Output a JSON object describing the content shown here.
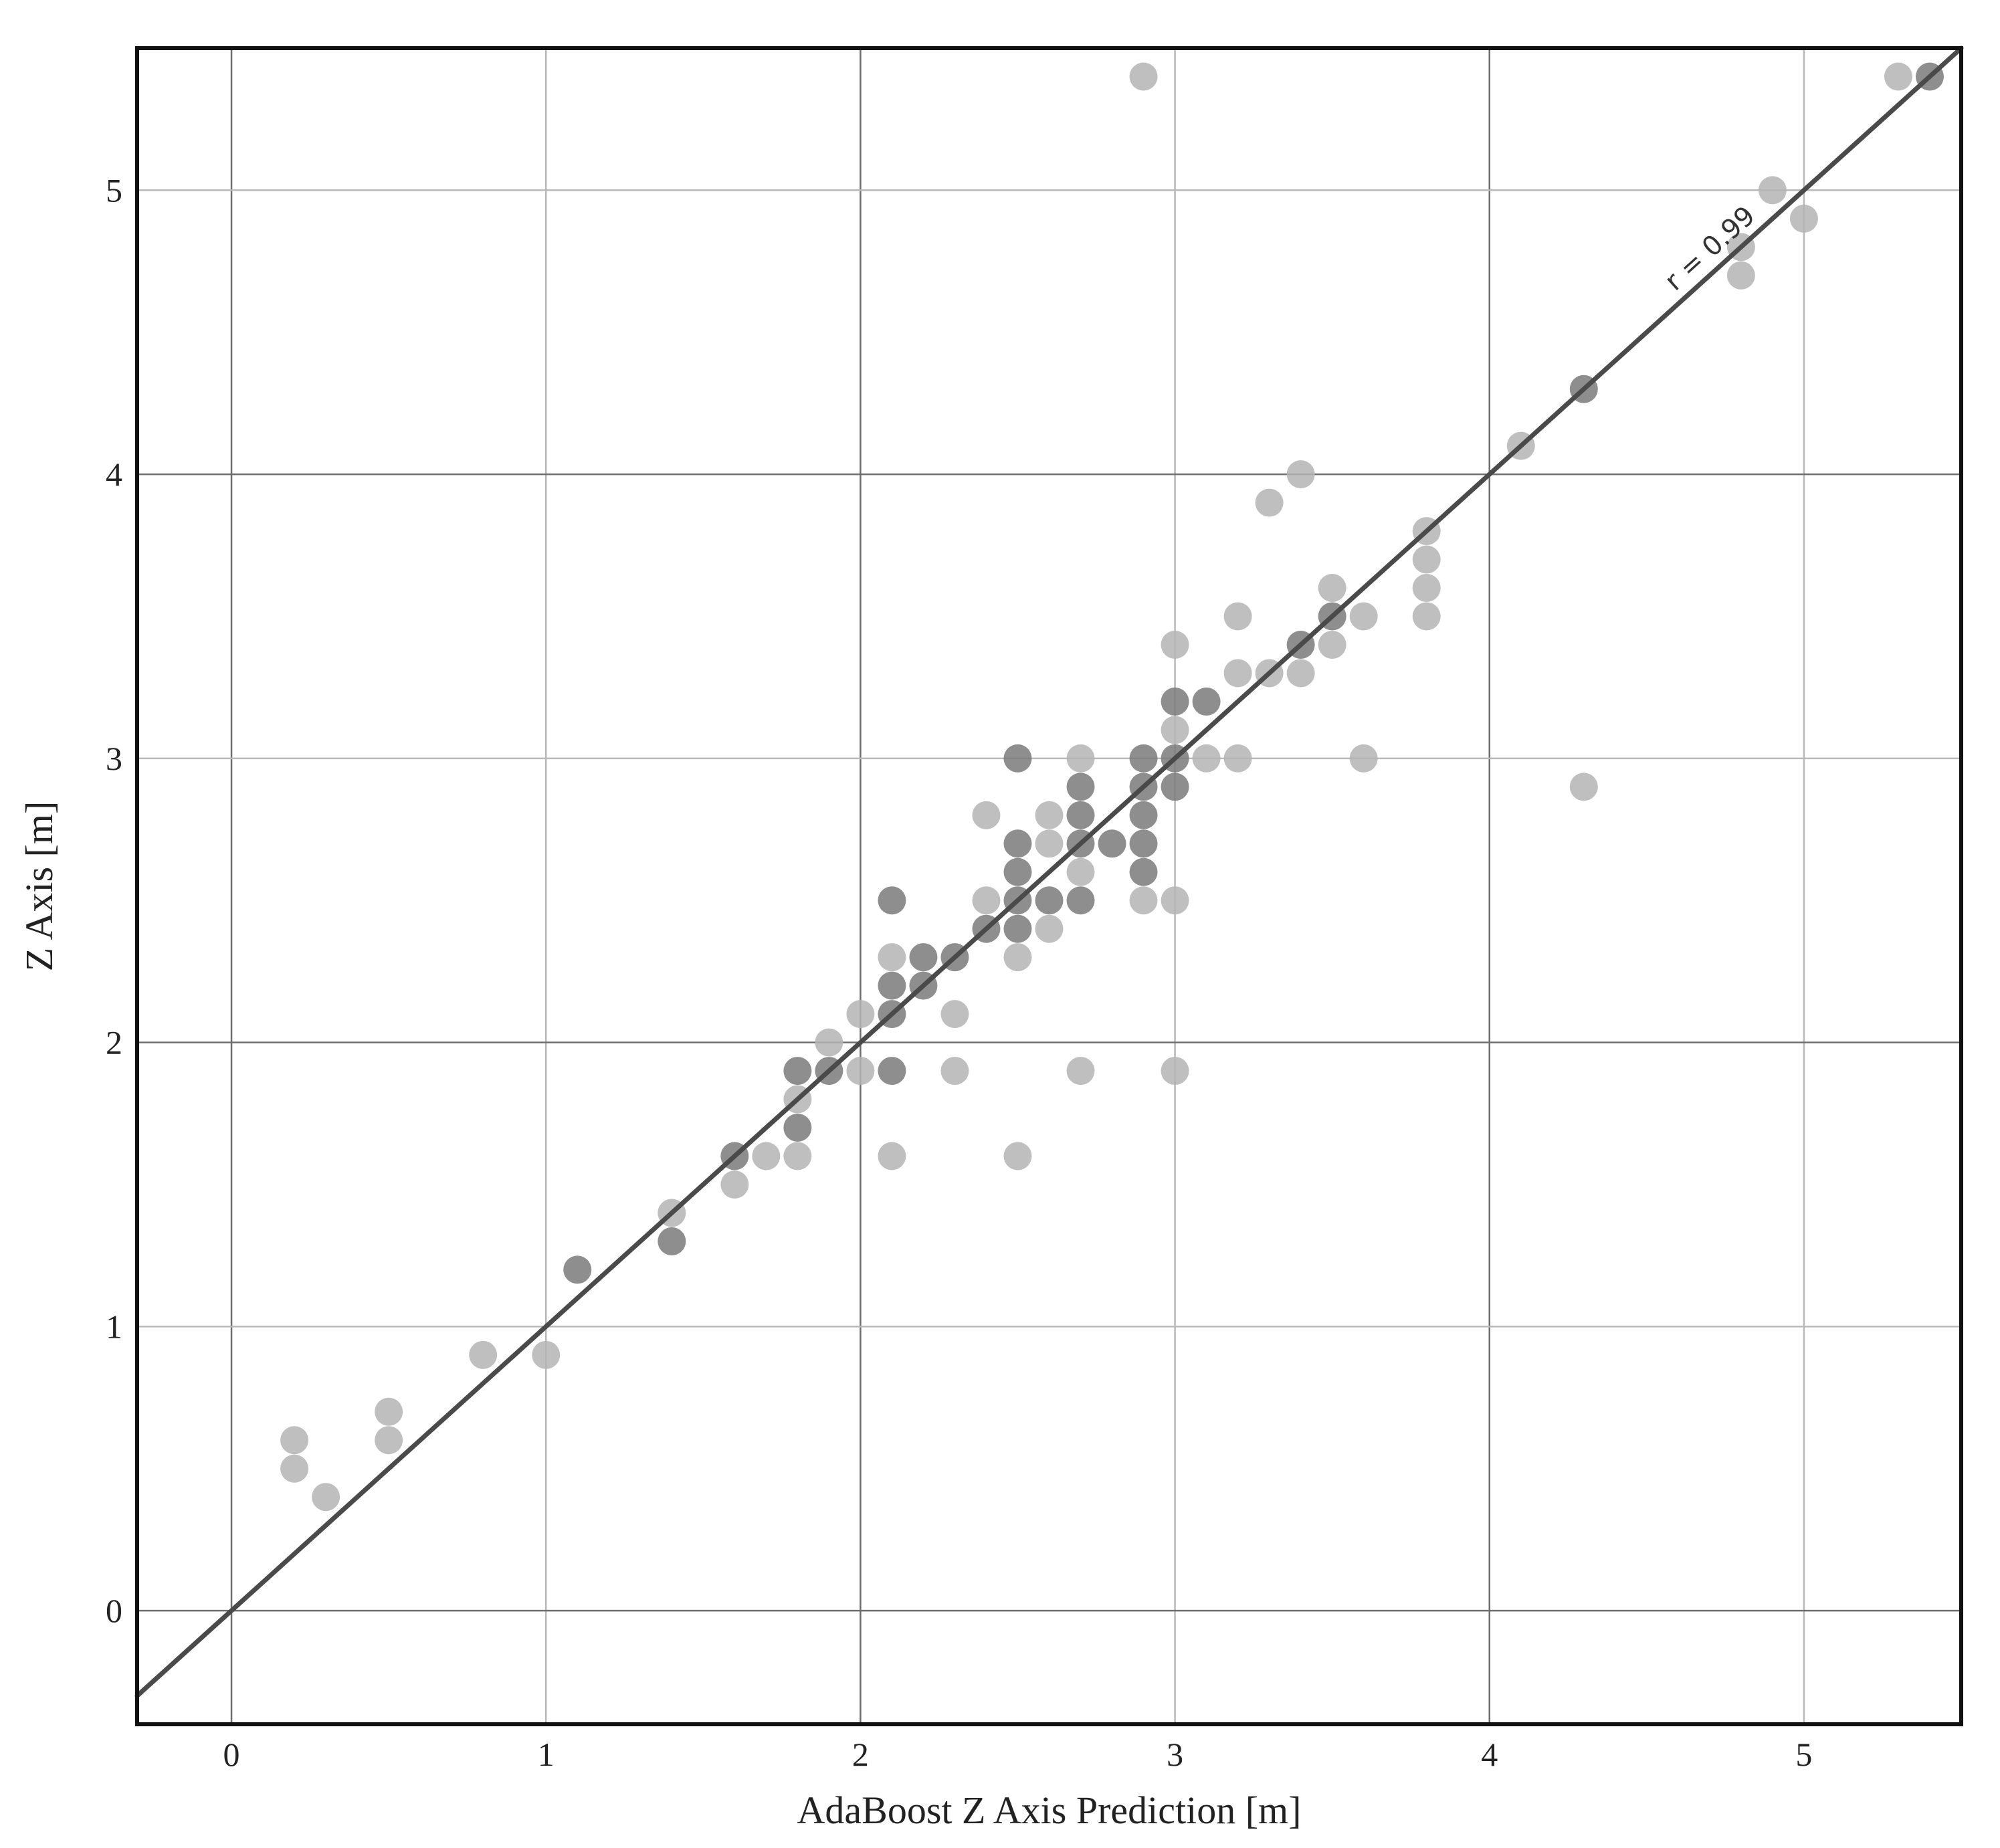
{
  "chart_data": {
    "type": "scatter",
    "xlabel": "AdaBoost Z Axis Prediction [m]",
    "ylabel": "Z Axis [m]",
    "xlim": [
      -0.3,
      5.5
    ],
    "ylim": [
      -0.4,
      5.5
    ],
    "xticks": [
      0,
      1,
      2,
      3,
      4,
      5
    ],
    "yticks": [
      0,
      1,
      2,
      3,
      4,
      5
    ],
    "x_tick_labels": [
      "0",
      "1",
      "2",
      "3",
      "4",
      "5"
    ],
    "y_tick_labels": [
      "0",
      "1",
      "2",
      "3",
      "4",
      "5"
    ],
    "grid": true,
    "fit_line": {
      "slope": 1.0,
      "intercept": 0.0
    },
    "annotation": "r = 0.99",
    "colors": {
      "point_light": "#b4b4b4",
      "point_dark": "#7a7a7a",
      "line": "#4a4a4a",
      "grid": "#b9b9b9",
      "frame": "#111111"
    },
    "series": [
      {
        "shade": "light",
        "points": [
          [
            0.2,
            0.6
          ],
          [
            0.2,
            0.5
          ],
          [
            0.3,
            0.4
          ],
          [
            0.5,
            0.7
          ],
          [
            0.5,
            0.6
          ],
          [
            0.8,
            0.9
          ],
          [
            1.0,
            0.9
          ],
          [
            1.4,
            1.4
          ],
          [
            1.6,
            1.5
          ],
          [
            1.7,
            1.6
          ],
          [
            1.8,
            1.6
          ],
          [
            1.8,
            1.8
          ],
          [
            1.9,
            2.0
          ],
          [
            2.0,
            2.1
          ],
          [
            2.0,
            1.9
          ],
          [
            2.1,
            2.3
          ],
          [
            2.1,
            1.6
          ],
          [
            2.3,
            2.1
          ],
          [
            2.3,
            1.9
          ],
          [
            2.4,
            2.8
          ],
          [
            2.4,
            2.5
          ],
          [
            2.5,
            1.6
          ],
          [
            2.5,
            2.3
          ],
          [
            2.6,
            2.8
          ],
          [
            2.6,
            2.7
          ],
          [
            2.6,
            2.4
          ],
          [
            2.7,
            3.0
          ],
          [
            2.7,
            2.6
          ],
          [
            2.7,
            1.9
          ],
          [
            2.9,
            5.4
          ],
          [
            2.9,
            2.5
          ],
          [
            3.0,
            3.4
          ],
          [
            3.0,
            3.1
          ],
          [
            3.0,
            2.5
          ],
          [
            3.0,
            1.9
          ],
          [
            3.1,
            3.0
          ],
          [
            3.2,
            3.5
          ],
          [
            3.2,
            3.3
          ],
          [
            3.2,
            3.0
          ],
          [
            3.3,
            3.9
          ],
          [
            3.3,
            3.3
          ],
          [
            3.4,
            4.0
          ],
          [
            3.4,
            3.3
          ],
          [
            3.5,
            3.6
          ],
          [
            3.5,
            3.4
          ],
          [
            3.6,
            3.5
          ],
          [
            3.6,
            3.0
          ],
          [
            3.8,
            3.8
          ],
          [
            3.8,
            3.7
          ],
          [
            3.8,
            3.6
          ],
          [
            3.8,
            3.5
          ],
          [
            4.1,
            4.1
          ],
          [
            4.3,
            2.9
          ],
          [
            4.8,
            4.8
          ],
          [
            4.8,
            4.7
          ],
          [
            4.9,
            5.0
          ],
          [
            5.0,
            4.9
          ],
          [
            5.3,
            5.4
          ]
        ]
      },
      {
        "shade": "dark",
        "points": [
          [
            1.1,
            1.2
          ],
          [
            1.4,
            1.3
          ],
          [
            1.6,
            1.6
          ],
          [
            1.8,
            1.9
          ],
          [
            1.8,
            1.7
          ],
          [
            1.9,
            1.9
          ],
          [
            2.1,
            2.5
          ],
          [
            2.1,
            2.2
          ],
          [
            2.1,
            2.1
          ],
          [
            2.1,
            1.9
          ],
          [
            2.2,
            2.3
          ],
          [
            2.2,
            2.2
          ],
          [
            2.3,
            2.3
          ],
          [
            2.4,
            2.4
          ],
          [
            2.5,
            3.0
          ],
          [
            2.5,
            2.7
          ],
          [
            2.5,
            2.6
          ],
          [
            2.5,
            2.5
          ],
          [
            2.5,
            2.4
          ],
          [
            2.6,
            2.5
          ],
          [
            2.7,
            2.9
          ],
          [
            2.7,
            2.8
          ],
          [
            2.7,
            2.7
          ],
          [
            2.7,
            2.5
          ],
          [
            2.8,
            2.7
          ],
          [
            2.9,
            3.0
          ],
          [
            2.9,
            2.9
          ],
          [
            2.9,
            2.8
          ],
          [
            2.9,
            2.7
          ],
          [
            2.9,
            2.6
          ],
          [
            3.0,
            3.2
          ],
          [
            3.0,
            3.0
          ],
          [
            3.0,
            2.9
          ],
          [
            3.1,
            3.2
          ],
          [
            3.4,
            3.4
          ],
          [
            3.5,
            3.5
          ],
          [
            4.3,
            4.3
          ],
          [
            5.4,
            5.4
          ]
        ]
      }
    ]
  }
}
